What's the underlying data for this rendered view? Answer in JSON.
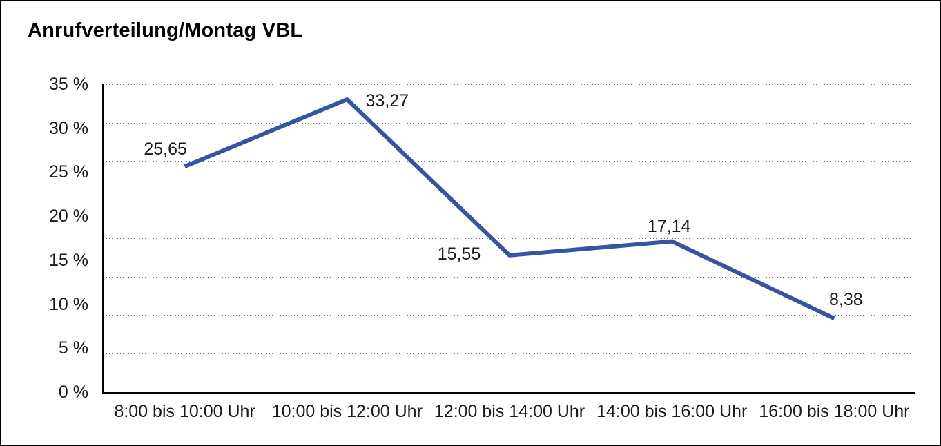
{
  "chart_data": {
    "type": "line",
    "title": "Anrufverteilung/Montag VBL",
    "categories": [
      "8:00 bis 10:00 Uhr",
      "10:00 bis 12:00 Uhr",
      "12:00 bis 14:00 Uhr",
      "14:00 bis 16:00 Uhr",
      "16:00 bis 18:00 Uhr"
    ],
    "values": [
      25.65,
      33.27,
      15.55,
      17.14,
      8.38
    ],
    "value_labels": [
      "25,65",
      "33,27",
      "15,55",
      "17,14",
      "8,38"
    ],
    "xlabel": "",
    "ylabel": "",
    "ylim": [
      0,
      35
    ],
    "y_tick_labels": [
      "35 %",
      "30 %",
      "25 %",
      "20 %",
      "15 %",
      "10 %",
      "5 %",
      "0 %"
    ],
    "y_tick_values": [
      35,
      30,
      25,
      20,
      15,
      10,
      5,
      0
    ],
    "grid": "horizontal-dotted",
    "legend_position": "none",
    "colors": {
      "line": "#3555A3",
      "grid": "#6E6E6E",
      "axis": "#000000",
      "text": "#1A1A1A",
      "title": "#000000",
      "background": "#FFFFFF"
    }
  }
}
